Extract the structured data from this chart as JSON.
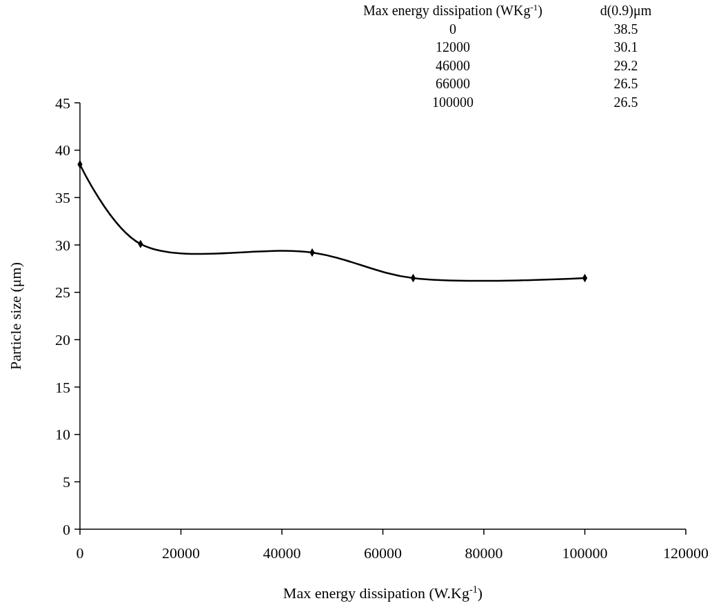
{
  "chart_data": {
    "type": "line",
    "xlabel": "Max energy dissipation (W.Kg$^{-1}$)",
    "ylabel": "Particle size (μm)",
    "x": [
      0,
      12000,
      46000,
      66000,
      100000
    ],
    "series": [
      {
        "color": "#000000",
        "values": [
          38.5,
          30.1,
          29.2,
          26.5,
          26.5
        ]
      }
    ],
    "xlim": [
      0,
      120000
    ],
    "xticks": [
      0,
      20000,
      40000,
      60000,
      80000,
      100000,
      120000
    ],
    "ylim": [
      0,
      45
    ],
    "yticks": [
      0,
      5,
      10,
      15,
      20,
      25,
      30,
      35,
      40,
      45
    ],
    "annotations": [
      "Max energy dissipation (WKg$^{-1}$)",
      "d(0.9)μm",
      "0",
      "38.5",
      "12000",
      "30.1",
      "46000",
      "29.2",
      "66000",
      "26.5",
      "100000",
      "26.5"
    ],
    "marker": "diamond",
    "line_style": "solid",
    "grid": false
  }
}
